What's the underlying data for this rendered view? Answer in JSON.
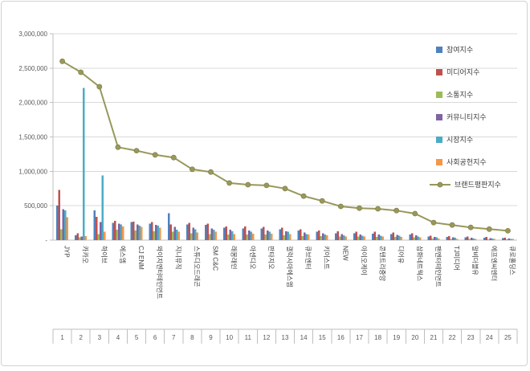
{
  "chart_data": {
    "type": "bar+line",
    "title": "",
    "grid": true,
    "legend_position": "right-top-inside",
    "categories": [
      "JYP",
      "카카오",
      "하이브",
      "에스엠",
      "CJ ENM",
      "와이지엔터테인먼트",
      "지니뮤직",
      "스튜디오드래곤",
      "SM C&C",
      "래몽래인",
      "아센디오",
      "판타지오",
      "갤럭시아에스엠",
      "큐브엔터",
      "키이스트",
      "NEW",
      "아이오케이",
      "콘텐트리중앙",
      "디어유",
      "삼화네트웍스",
      "팬엔터테인먼트",
      "TJ미디어",
      "알비더블유",
      "에프엔씨엔터",
      "큐로홀딩스"
    ],
    "ranks": [
      "1",
      "2",
      "3",
      "4",
      "5",
      "6",
      "7",
      "8",
      "9",
      "10",
      "11",
      "12",
      "13",
      "14",
      "15",
      "16",
      "17",
      "18",
      "19",
      "20",
      "21",
      "22",
      "23",
      "24",
      "25"
    ],
    "bar_series": [
      {
        "name": "참여지수",
        "color": "#4F81BD",
        "values": [
          500000,
          70000,
          430000,
          250000,
          260000,
          240000,
          390000,
          230000,
          220000,
          180000,
          170000,
          170000,
          160000,
          140000,
          120000,
          100000,
          100000,
          95000,
          90000,
          80000,
          55000,
          45000,
          40000,
          35000,
          30000
        ]
      },
      {
        "name": "미디어지수",
        "color": "#C0504D",
        "values": [
          730000,
          100000,
          340000,
          280000,
          270000,
          260000,
          230000,
          250000,
          240000,
          200000,
          200000,
          190000,
          180000,
          160000,
          140000,
          130000,
          120000,
          120000,
          110000,
          100000,
          65000,
          60000,
          50000,
          45000,
          35000
        ]
      },
      {
        "name": "소통지수",
        "color": "#9BBB59",
        "values": [
          160000,
          40000,
          90000,
          150000,
          140000,
          130000,
          120000,
          100000,
          90000,
          80000,
          80000,
          80000,
          70000,
          60000,
          60000,
          50000,
          50000,
          45000,
          45000,
          40000,
          25000,
          20000,
          15000,
          12000,
          10000
        ]
      },
      {
        "name": "커뮤니티지수",
        "color": "#8064A2",
        "values": [
          450000,
          50000,
          260000,
          240000,
          230000,
          220000,
          190000,
          180000,
          170000,
          150000,
          140000,
          140000,
          130000,
          110000,
          100000,
          90000,
          80000,
          80000,
          75000,
          70000,
          45000,
          40000,
          35000,
          30000,
          25000
        ]
      },
      {
        "name": "시장지수",
        "color": "#4BACC6",
        "values": [
          430000,
          2210000,
          940000,
          230000,
          210000,
          210000,
          150000,
          160000,
          150000,
          130000,
          120000,
          120000,
          120000,
          90000,
          80000,
          70000,
          65000,
          65000,
          65000,
          55000,
          40000,
          35000,
          25000,
          23000,
          20000
        ]
      },
      {
        "name": "사회공헌지수",
        "color": "#F79646",
        "values": [
          330000,
          60000,
          120000,
          200000,
          190000,
          180000,
          120000,
          110000,
          120000,
          90000,
          95000,
          95000,
          90000,
          80000,
          70000,
          50000,
          50000,
          50000,
          45000,
          40000,
          25000,
          20000,
          20000,
          15000,
          15000
        ]
      }
    ],
    "line_series": {
      "name": "브랜드평판지수",
      "color": "#98985A",
      "values": [
        2600000,
        2440000,
        2230000,
        1350000,
        1300000,
        1240000,
        1200000,
        1030000,
        990000,
        830000,
        805000,
        795000,
        750000,
        640000,
        570000,
        490000,
        465000,
        455000,
        430000,
        385000,
        255000,
        220000,
        185000,
        160000,
        135000
      ]
    },
    "y_axis": {
      "min": 0,
      "max": 3000000,
      "step": 500000,
      "tick_labels": [
        "-",
        "500,000",
        "1,000,000",
        "1,500,000",
        "2,000,000",
        "2,500,000",
        "3,000,000"
      ]
    },
    "style": {
      "gridline_color": "#d9d9d9",
      "axis_color": "#bfbfbf",
      "tick_label_color": "#595959",
      "category_label_color": "#404040",
      "frame_border_color": "#d2d2d2",
      "background": "#ffffff"
    }
  }
}
